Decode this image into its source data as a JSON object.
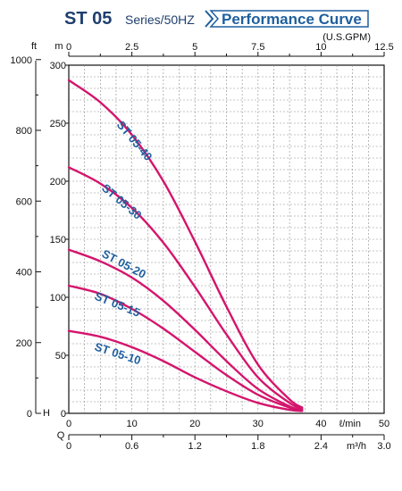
{
  "header": {
    "model": "ST 05",
    "series": "Series/50HZ",
    "curve_title": "Performance Curve"
  },
  "colors": {
    "curve": "#d4156c",
    "label": "#1f5f9e",
    "grid": "#8c8c8c",
    "axis": "#111111",
    "title_box": "#1f5f9e"
  },
  "chart_data": {
    "type": "line",
    "x_unit_label": "ℓ/min",
    "x_unit_label_alt": "m³/h",
    "top_unit_label": "(U.S.GPM)",
    "left_unit_label": "ft",
    "right_unit_label_inner": "m",
    "head_label": "H",
    "flow_label": "Q",
    "x_range": [
      0,
      50
    ],
    "y_range_m": [
      0,
      300
    ],
    "x_ticks": [
      "0",
      "10",
      "20",
      "30",
      "40",
      "50"
    ],
    "x_ticks_m3h": [
      "0",
      "0.6",
      "1.2",
      "1.8",
      "2.4",
      "3.0"
    ],
    "x_ticks_gpm": [
      "0",
      "2.5",
      "5",
      "7.5",
      "10",
      "12.5"
    ],
    "y_ticks_m": [
      "0",
      "50",
      "100",
      "150",
      "200",
      "250",
      "300"
    ],
    "y_ticks_ft": [
      "0",
      "200",
      "400",
      "600",
      "800",
      "1000"
    ],
    "series": [
      {
        "name": "ST 05-40",
        "x": [
          0,
          5,
          10,
          15,
          20,
          25,
          30,
          35,
          37
        ],
        "y": [
          287,
          268,
          240,
          200,
          148,
          92,
          42,
          12,
          5
        ]
      },
      {
        "name": "ST 05-30",
        "x": [
          0,
          5,
          10,
          15,
          20,
          25,
          30,
          35,
          37
        ],
        "y": [
          212,
          198,
          177,
          147,
          109,
          68,
          31,
          9,
          4
        ]
      },
      {
        "name": "ST 05-20",
        "x": [
          0,
          5,
          10,
          15,
          20,
          25,
          30,
          35,
          37
        ],
        "y": [
          141,
          131,
          117,
          97,
          72,
          45,
          21,
          6,
          3
        ]
      },
      {
        "name": "ST 05-15",
        "x": [
          0,
          5,
          10,
          15,
          20,
          25,
          30,
          35,
          37
        ],
        "y": [
          110,
          103,
          90,
          73,
          53,
          33,
          16,
          5,
          3
        ]
      },
      {
        "name": "ST 05-10",
        "x": [
          0,
          5,
          10,
          15,
          20,
          25,
          30,
          35,
          37
        ],
        "y": [
          71,
          66,
          57,
          45,
          31,
          19,
          9,
          3,
          2
        ]
      }
    ],
    "grid": true
  }
}
